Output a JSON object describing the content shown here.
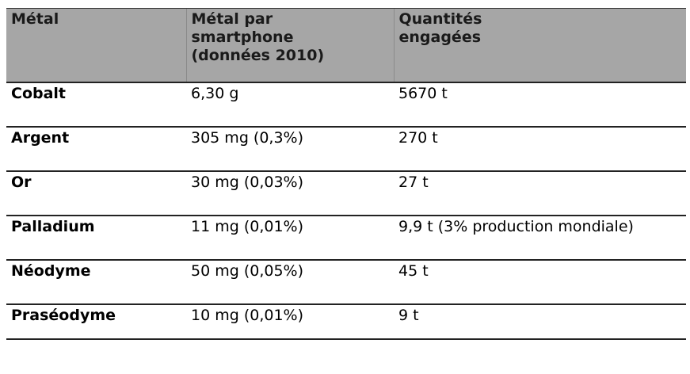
{
  "table": {
    "header": [
      "Métal",
      "Métal par smartphone (données 2010)",
      "Quantités engagées"
    ],
    "rows": [
      [
        "Cobalt",
        "6,30 g",
        "5670 t"
      ],
      [
        "Argent",
        "305 mg (0,3%)",
        "270 t"
      ],
      [
        "Or",
        "30 mg (0,03%)",
        "27 t"
      ],
      [
        "Palladium",
        "11 mg (0,01%)",
        "9,9 t (3% production mondiale)"
      ],
      [
        "Néodyme",
        "50 mg (0,05%)",
        "45 t"
      ],
      [
        "Praséodyme",
        "10 mg (0,01%)",
        "9 t"
      ]
    ]
  }
}
